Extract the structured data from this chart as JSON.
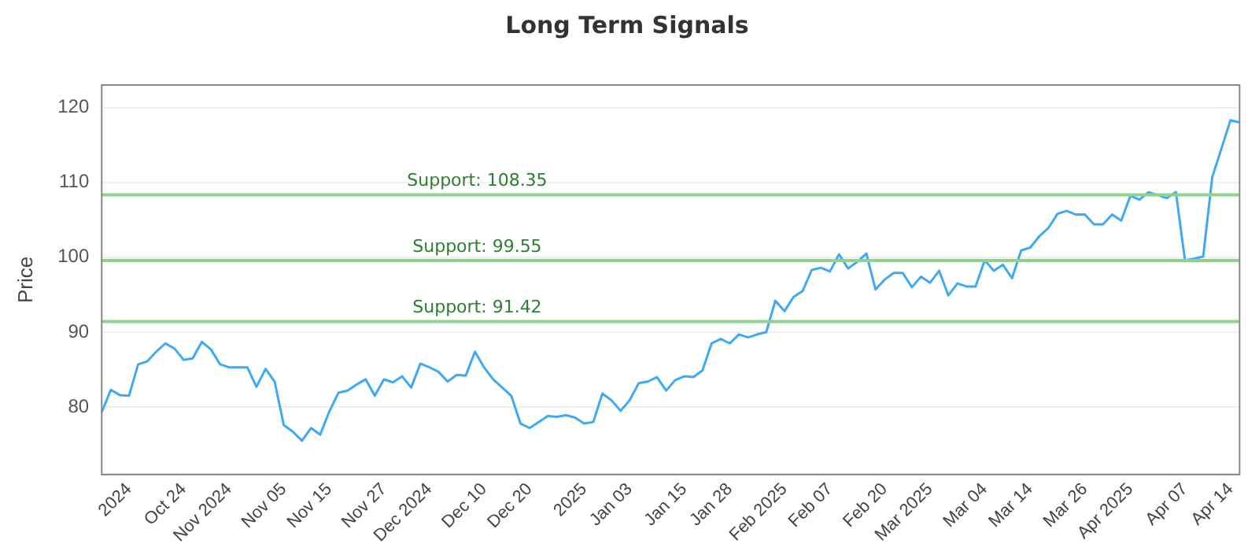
{
  "chart_data": {
    "type": "line",
    "title": "Long Term Signals",
    "ylabel": "Price",
    "categories": [
      null,
      null,
      null,
      "2024",
      null,
      null,
      null,
      null,
      null,
      "Oct 24",
      null,
      null,
      null,
      null,
      "Nov 2024",
      null,
      null,
      null,
      null,
      null,
      "Nov 05",
      null,
      null,
      null,
      null,
      "Nov 15",
      null,
      null,
      null,
      null,
      null,
      "Nov 27",
      null,
      null,
      null,
      null,
      "Dec 2024",
      null,
      null,
      null,
      null,
      null,
      "Dec 10",
      null,
      null,
      null,
      null,
      "Dec 20",
      null,
      null,
      null,
      null,
      null,
      "2025",
      null,
      null,
      null,
      null,
      "Jan 03",
      null,
      null,
      null,
      null,
      null,
      "Jan 15",
      null,
      null,
      null,
      null,
      "Jan 28",
      null,
      null,
      null,
      null,
      null,
      "Feb 2025",
      null,
      null,
      null,
      null,
      "Feb 07",
      null,
      null,
      null,
      null,
      null,
      "Feb 20",
      null,
      null,
      null,
      null,
      "Mar 2025",
      null,
      null,
      null,
      null,
      null,
      "Mar 04",
      null,
      null,
      null,
      null,
      "Mar 14",
      null,
      null,
      null,
      null,
      null,
      "Mar 26",
      null,
      null,
      null,
      null,
      "Apr 2025",
      null,
      null,
      null,
      null,
      null,
      "Apr 07",
      null,
      null,
      null,
      null,
      "Apr 14",
      null
    ],
    "series": [
      {
        "color": "#3fa9f5",
        "values": [
          79.3,
          82.3,
          81.6,
          81.5,
          85.7,
          86.1,
          87.4,
          88.5,
          87.8,
          86.3,
          86.5,
          88.7,
          87.7,
          85.7,
          85.3,
          85.3,
          85.3,
          82.7,
          85.1,
          83.4,
          77.6,
          76.7,
          75.5,
          77.2,
          76.3,
          79.4,
          81.9,
          82.2,
          83.0,
          83.7,
          81.5,
          83.7,
          83.3,
          84.1,
          82.6,
          85.8,
          85.3,
          84.7,
          83.4,
          84.3,
          84.2,
          87.4,
          85.3,
          83.7,
          82.6,
          81.5,
          77.8,
          77.2,
          78.0,
          78.8,
          78.7,
          78.9,
          78.6,
          77.8,
          78.0,
          81.8,
          80.9,
          79.5,
          80.9,
          83.2,
          83.4,
          84.0,
          82.2,
          83.6,
          84.1,
          84.0,
          84.9,
          88.5,
          89.1,
          88.5,
          89.7,
          89.3,
          89.7,
          90.0,
          94.2,
          92.8,
          94.7,
          95.5,
          98.3,
          98.6,
          98.1,
          100.4,
          98.5,
          99.4,
          100.5,
          95.7,
          97.0,
          97.9,
          97.9,
          96.0,
          97.4,
          96.6,
          98.2,
          94.9,
          96.5,
          96.1,
          96.1,
          99.6,
          98.2,
          99.0,
          97.2,
          100.9,
          101.3,
          102.8,
          103.9,
          105.8,
          106.2,
          105.7,
          105.7,
          104.4,
          104.4,
          105.7,
          104.9,
          108.2,
          107.7,
          108.7,
          108.3,
          107.9,
          108.7,
          99.6,
          99.8,
          100.1,
          110.7,
          114.5,
          118.3,
          118.0
        ]
      }
    ],
    "ylim": [
      71,
      123
    ],
    "yticks": [
      80,
      90,
      100,
      110,
      120
    ],
    "grid": "y",
    "legend": false,
    "marker": "none",
    "line_style": "solid",
    "ref_lines": [
      {
        "axis": "y",
        "value": 108.35,
        "label": "Support: 108.35",
        "color": "#8fd18f"
      },
      {
        "axis": "y",
        "value": 99.55,
        "label": "Support: 99.55",
        "color": "#8fd18f"
      },
      {
        "axis": "y",
        "value": 91.42,
        "label": "Support: 91.42",
        "color": "#8fd18f"
      }
    ]
  }
}
